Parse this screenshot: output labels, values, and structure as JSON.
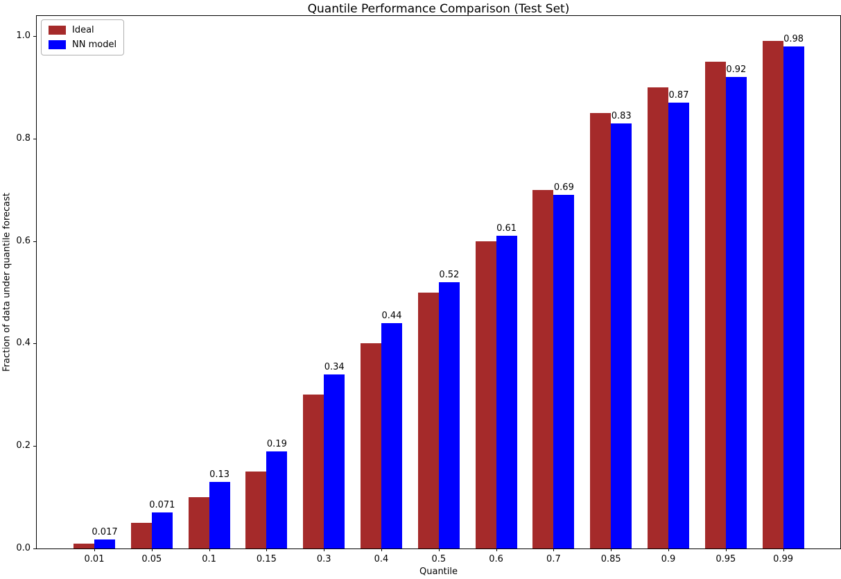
{
  "chart_data": {
    "type": "bar",
    "title": "Quantile Performance Comparison (Test Set)",
    "xlabel": "Quantile",
    "ylabel": "Fraction of data under quantile forecast",
    "categories": [
      "0.01",
      "0.05",
      "0.1",
      "0.15",
      "0.3",
      "0.4",
      "0.5",
      "0.6",
      "0.7",
      "0.85",
      "0.9",
      "0.95",
      "0.99"
    ],
    "series": [
      {
        "name": "Ideal",
        "color": "#A52A2A",
        "values": [
          0.01,
          0.05,
          0.1,
          0.15,
          0.3,
          0.4,
          0.5,
          0.6,
          0.7,
          0.85,
          0.9,
          0.95,
          0.99
        ]
      },
      {
        "name": "NN model",
        "color": "#0000FF",
        "values": [
          0.017,
          0.071,
          0.13,
          0.19,
          0.34,
          0.44,
          0.52,
          0.61,
          0.69,
          0.83,
          0.87,
          0.92,
          0.98
        ]
      }
    ],
    "bar_labels": [
      "0.017",
      "0.071",
      "0.13",
      "0.19",
      "0.34",
      "0.44",
      "0.52",
      "0.61",
      "0.69",
      "0.83",
      "0.87",
      "0.92",
      "0.98"
    ],
    "yticks": [
      "0.0",
      "0.2",
      "0.4",
      "0.6",
      "0.8",
      "1.0"
    ],
    "ytick_values": [
      0.0,
      0.2,
      0.4,
      0.6,
      0.8,
      1.0
    ],
    "ylim": [
      0,
      1.04
    ],
    "legend_position": "upper left",
    "grid": false,
    "text_color": "#000000",
    "background_color": "#ffffff"
  }
}
